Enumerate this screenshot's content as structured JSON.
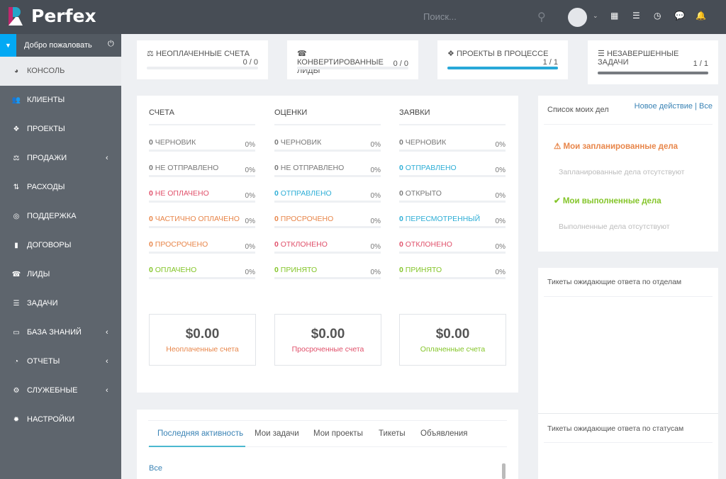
{
  "header": {
    "brand": "Perfex",
    "search_placeholder": "Поиск..."
  },
  "sidebar": {
    "welcome": "Добро пожаловать",
    "items": [
      {
        "label": "КОНСОЛЬ",
        "icon": "dashboard-icon",
        "active": true
      },
      {
        "label": "КЛИЕНТЫ",
        "icon": "users-icon"
      },
      {
        "label": "ПРОЕКТЫ",
        "icon": "cubes-icon"
      },
      {
        "label": "ПРОДАЖИ",
        "icon": "balance-scale-icon",
        "chevron": true
      },
      {
        "label": "РАСХОДЫ",
        "icon": "sort-amount-icon"
      },
      {
        "label": "ПОДДЕРЖКА",
        "icon": "life-ring-icon"
      },
      {
        "label": "ДОГОВОРЫ",
        "icon": "file-icon"
      },
      {
        "label": "ЛИДЫ",
        "icon": "tty-icon"
      },
      {
        "label": "ЗАДАЧИ",
        "icon": "tasks-icon"
      },
      {
        "label": "БАЗА ЗНАНИЙ",
        "icon": "folder-open-icon",
        "chevron": true
      },
      {
        "label": "ОТЧЕТЫ",
        "icon": "pie-chart-icon",
        "chevron": true
      },
      {
        "label": "СЛУЖЕБНЫЕ",
        "icon": "cogs-icon",
        "chevron": true
      },
      {
        "label": "НАСТРОЙКИ",
        "icon": "cog-icon"
      }
    ]
  },
  "stats": [
    {
      "title": "НЕОПЛАЧЕННЫЕ СЧЕТА",
      "value": "0 / 0",
      "progress": 0,
      "color": "#03a9f4",
      "icon": "⚖"
    },
    {
      "title": "КОНВЕРТИРОВАННЫЕ ЛИДЫ",
      "value": "0 / 0",
      "progress": 0,
      "color": "#03a9f4",
      "icon": "☎"
    },
    {
      "title": "ПРОЕКТЫ В ПРОЦЕССЕ",
      "value": "1 / 1",
      "progress": 100,
      "color": "#28a8d8",
      "icon": "❖"
    },
    {
      "title": "НЕЗАВЕРШЕННЫЕ ЗАДАЧИ",
      "value": "1 / 1",
      "progress": 100,
      "color": "#777b80",
      "icon": "☰"
    }
  ],
  "overview": {
    "columns": [
      {
        "title": "СЧЕТА",
        "rows": [
          {
            "count": "0",
            "label": "ЧЕРНОВИК",
            "pct": "0%",
            "color": "#777777"
          },
          {
            "count": "0",
            "label": "НЕ ОТПРАВЛЕНО",
            "pct": "0%",
            "color": "#777777"
          },
          {
            "count": "0",
            "label": "НЕ ОПЛАЧЕНО",
            "pct": "0%",
            "color": "#e0506a"
          },
          {
            "count": "0",
            "label": "ЧАСТИЧНО ОПЛАЧЕНО",
            "pct": "0%",
            "color": "#e8864a"
          },
          {
            "count": "0",
            "label": "ПРОСРОЧЕНО",
            "pct": "0%",
            "color": "#e8864a"
          },
          {
            "count": "0",
            "label": "ОПЛАЧЕНО",
            "pct": "0%",
            "color": "#84c529"
          }
        ]
      },
      {
        "title": "ОЦЕНКИ",
        "rows": [
          {
            "count": "0",
            "label": "ЧЕРНОВИК",
            "pct": "0%",
            "color": "#777777"
          },
          {
            "count": "0",
            "label": "НЕ ОТПРАВЛЕНО",
            "pct": "0%",
            "color": "#777777"
          },
          {
            "count": "0",
            "label": "ОТПРАВЛЕНО",
            "pct": "0%",
            "color": "#2eaed6"
          },
          {
            "count": "0",
            "label": "ПРОСРОЧЕНО",
            "pct": "0%",
            "color": "#e8864a"
          },
          {
            "count": "0",
            "label": "ОТКЛОНЕНО",
            "pct": "0%",
            "color": "#e0506a"
          },
          {
            "count": "0",
            "label": "ПРИНЯТО",
            "pct": "0%",
            "color": "#84c529"
          }
        ]
      },
      {
        "title": "ЗАЯВКИ",
        "rows": [
          {
            "count": "0",
            "label": "ЧЕРНОВИК",
            "pct": "0%",
            "color": "#777777"
          },
          {
            "count": "0",
            "label": "ОТПРАВЛЕНО",
            "pct": "0%",
            "color": "#2eaed6"
          },
          {
            "count": "0",
            "label": "ОТКРЫТО",
            "pct": "0%",
            "color": "#777777"
          },
          {
            "count": "0",
            "label": "ПЕРЕСМОТРЕННЫЙ",
            "pct": "0%",
            "color": "#2eaed6"
          },
          {
            "count": "0",
            "label": "ОТКЛОНЕНО",
            "pct": "0%",
            "color": "#e0506a"
          },
          {
            "count": "0",
            "label": "ПРИНЯТО",
            "pct": "0%",
            "color": "#84c529"
          }
        ]
      }
    ],
    "totals": [
      {
        "amount": "$0.00",
        "label": "Неоплаченные счета",
        "color": "#e8864a"
      },
      {
        "amount": "$0.00",
        "label": "Просроченные счета",
        "color": "#e0506a"
      },
      {
        "amount": "$0.00",
        "label": "Оплаченные счета",
        "color": "#84c529"
      }
    ]
  },
  "todo": {
    "title": "Список моих дел",
    "new_action": "Новое действие",
    "all": "Все",
    "planned_title": "Мои запланированные дела",
    "planned_empty": "Запланированные дела отсутствуют",
    "done_title": "Мои выполненные дела",
    "done_empty": "Выполненные дела отсутствуют"
  },
  "tickets": {
    "by_department": "Тикеты ожидающие ответа по отделам",
    "by_status": "Тикеты ожидающие ответа по статусам"
  },
  "activity": {
    "tabs": [
      "Последняя активность",
      "Мои задачи",
      "Мои проекты",
      "Тикеты",
      "Объявления"
    ],
    "active_tab": 0,
    "filter": "Все"
  }
}
